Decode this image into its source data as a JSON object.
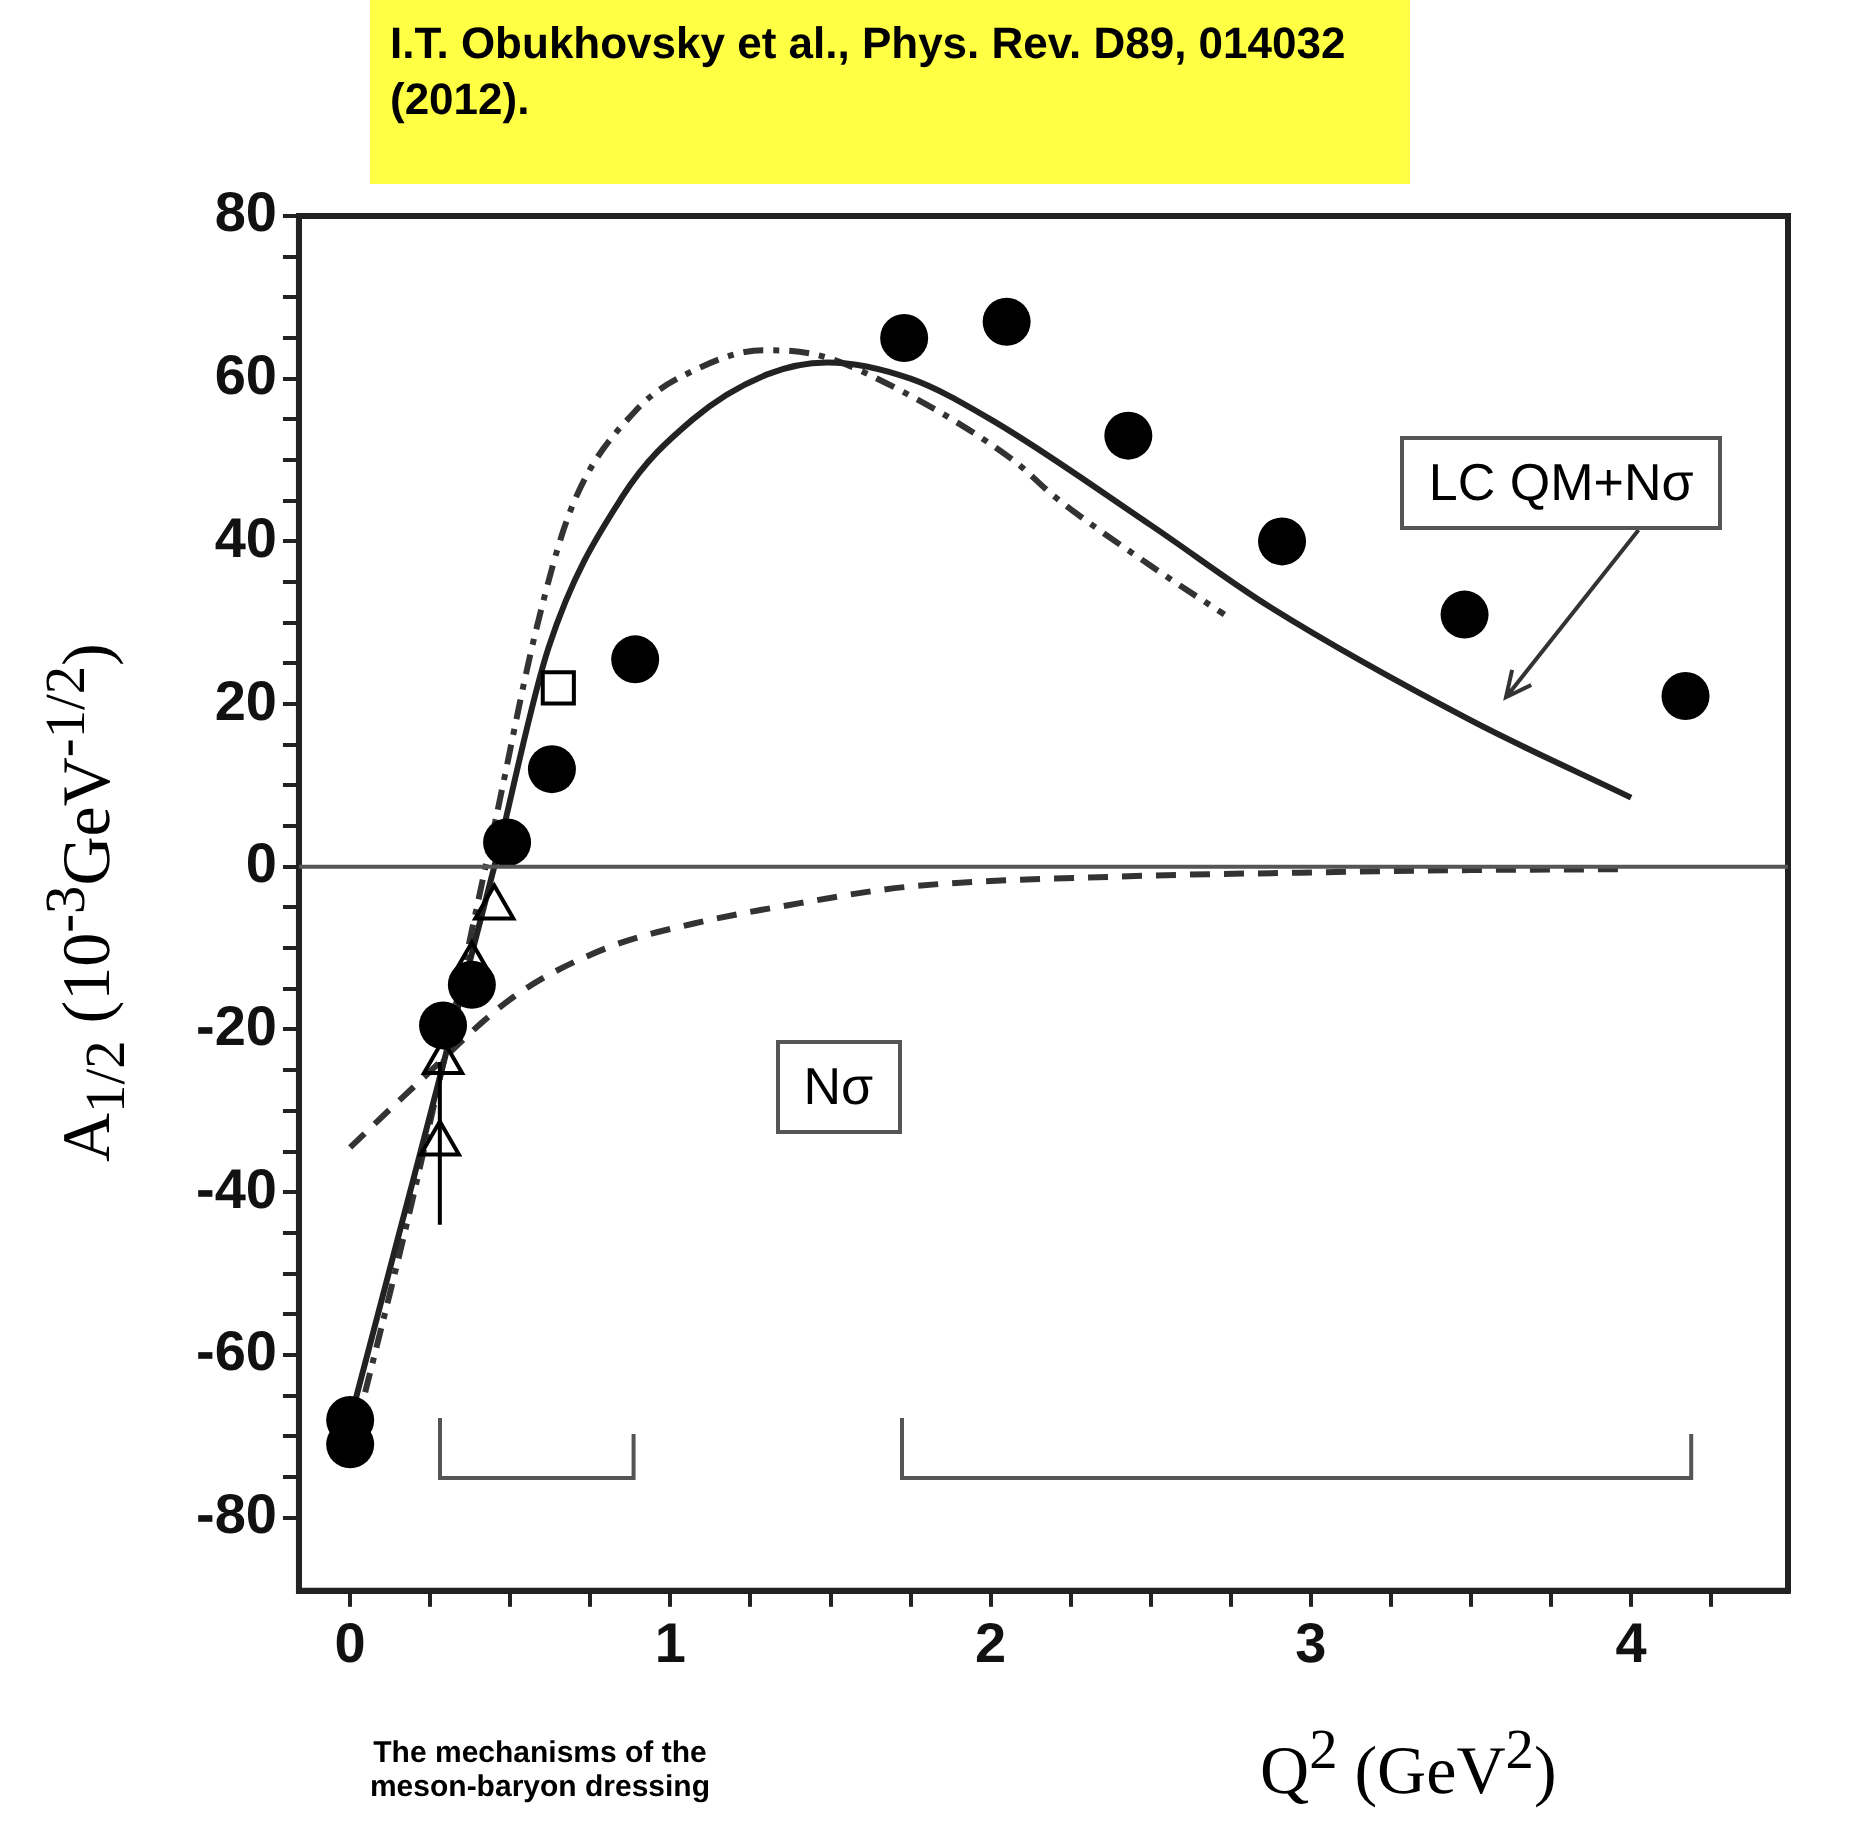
{
  "chart_data": {
    "type": "scatter",
    "title": "I.T.  Obukhovsky et al., Phys. Rev. D89, 014032 (2012).",
    "xlabel": "Q$^{2}$ (GeV$^{2}$)",
    "ylabel": "A$_{1/2}$ (10$^{-3}$GeV$^{-1/2}$)",
    "xlim": [
      -0.16,
      4.49
    ],
    "ylim": [
      -89,
      80
    ],
    "xticks": [
      0,
      {
        "value": 0.25,
        "label": null
      },
      {
        "value": 0.5,
        "label": null
      },
      {
        "value": 0.75,
        "label": null
      },
      1,
      {
        "value": 1.25,
        "label": null
      },
      {
        "value": 1.5,
        "label": null
      },
      {
        "value": 1.75,
        "label": null
      },
      2,
      {
        "value": 2.25,
        "label": null
      },
      {
        "value": 2.5,
        "label": null
      },
      {
        "value": 2.75,
        "label": null
      },
      3,
      {
        "value": 3.25,
        "label": null
      },
      {
        "value": 3.5,
        "label": null
      },
      {
        "value": 3.75,
        "label": null
      },
      4,
      {
        "value": 4.25,
        "label": null
      }
    ],
    "yticks": [
      -80,
      {
        "value": -75,
        "label": null
      },
      {
        "value": -70,
        "label": null
      },
      {
        "value": -65,
        "label": null
      },
      -60,
      {
        "value": -55,
        "label": null
      },
      {
        "value": -50,
        "label": null
      },
      {
        "value": -45,
        "label": null
      },
      -40,
      {
        "value": -35,
        "label": null
      },
      {
        "value": -30,
        "label": null
      },
      {
        "value": -25,
        "label": null
      },
      -20,
      {
        "value": -15,
        "label": null
      },
      {
        "value": -10,
        "label": null
      },
      {
        "value": -5,
        "label": null
      },
      0,
      {
        "value": 5,
        "label": null
      },
      {
        "value": 10,
        "label": null
      },
      {
        "value": 15,
        "label": null
      },
      20,
      {
        "value": 25,
        "label": null
      },
      {
        "value": 30,
        "label": null
      },
      {
        "value": 35,
        "label": null
      },
      40,
      {
        "value": 45,
        "label": null
      },
      {
        "value": 50,
        "label": null
      },
      {
        "value": 55,
        "label": null
      },
      60,
      {
        "value": 65,
        "label": null
      },
      {
        "value": 70,
        "label": null
      },
      {
        "value": 75,
        "label": null
      },
      80
    ],
    "series": [
      {
        "type": "scatter",
        "color": "#000000",
        "marker": "circle",
        "x": [
          0,
          0,
          0.29,
          0.38,
          0.49,
          0.63,
          0.89,
          1.73,
          2.05,
          2.43,
          2.91,
          3.48,
          4.17
        ],
        "values": [
          -68,
          -71,
          -19.5,
          -14.5,
          3,
          12,
          25.5,
          65,
          67,
          53,
          40,
          31,
          21
        ]
      },
      {
        "type": "scatter",
        "color": "#000000",
        "marker": "square",
        "x": [
          0.65
        ],
        "values": [
          22
        ]
      },
      {
        "type": "scatter",
        "color": "#000000",
        "marker": "triangle",
        "x": [
          0.45,
          0.38,
          0.29,
          0.28
        ],
        "values": [
          -5,
          -12,
          -24,
          -34
        ],
        "errors": [
          null,
          null,
          null,
          10
        ]
      },
      {
        "type": "line",
        "color": "#222222",
        "line_style": "solid",
        "marker": "none",
        "x": [
          0,
          0.2,
          0.45,
          0.62,
          0.85,
          1.07,
          1.3,
          1.49,
          1.75,
          2.0,
          2.5,
          2.87,
          3.5,
          4.0
        ],
        "values": [
          -68,
          -38,
          0,
          27,
          45.5,
          55,
          60.5,
          62,
          60,
          55,
          42,
          32,
          18,
          8.5
        ]
      },
      {
        "type": "line",
        "color": "#333333",
        "line_style": "dotted",
        "marker": "none",
        "x": [
          0,
          0.2,
          0.45,
          0.58,
          0.69,
          0.89,
          1.1,
          1.29,
          1.45,
          1.62,
          2.07,
          2.2,
          2.5,
          2.73
        ],
        "values": [
          -72,
          -40,
          5,
          29,
          44,
          56,
          61.5,
          63.5,
          63,
          60.5,
          50,
          45.5,
          37,
          31
        ]
      },
      {
        "type": "line",
        "color": "#333333",
        "line_style": "dashed",
        "marker": "none",
        "x": [
          0,
          0.2,
          0.51,
          0.8,
          1.07,
          1.4,
          1.73,
          2.4,
          3.0,
          3.5,
          4.0
        ],
        "values": [
          -34.5,
          -27,
          -16,
          -10,
          -7,
          -4.5,
          -2.5,
          -1.2,
          -0.7,
          -0.4,
          -0.3
        ]
      }
    ],
    "ref_lines": [
      {
        "axis": "y",
        "value": 0,
        "color": "#555555",
        "line_style": "solid"
      }
    ],
    "annotations": [
      "LC QM+Nσ",
      "Nσ",
      "The mechanisms of the meson-baryon dressing"
    ]
  }
}
